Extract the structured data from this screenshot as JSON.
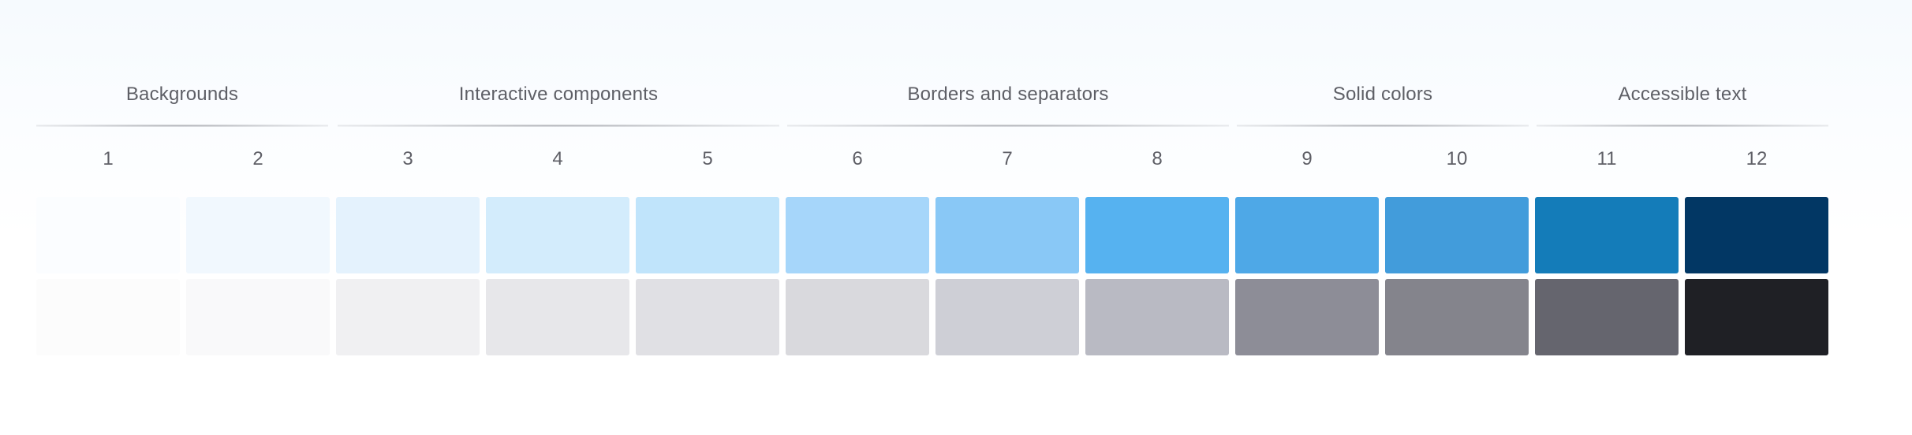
{
  "groups": [
    {
      "label": "Backgrounds"
    },
    {
      "label": "Interactive components"
    },
    {
      "label": "Borders and separators"
    },
    {
      "label": "Solid colors"
    },
    {
      "label": "Accessible text"
    }
  ],
  "steps": [
    "1",
    "2",
    "3",
    "4",
    "5",
    "6",
    "7",
    "8",
    "9",
    "10",
    "11",
    "12"
  ],
  "scales": {
    "blue": [
      "#fbfdff",
      "#f1f8fe",
      "#e4f2fd",
      "#d3ecfc",
      "#c0e4fb",
      "#a6d6fa",
      "#89c8f6",
      "#56b2f0",
      "#4ea8e7",
      "#429cdb",
      "#147cb9",
      "#023764"
    ],
    "gray": [
      "#fcfcfc",
      "#f9f9fa",
      "#f0f0f2",
      "#e7e7ea",
      "#e0e0e4",
      "#d9d9dd",
      "#cecfd6",
      "#b9bac3",
      "#8d8d97",
      "#84848c",
      "#65656e",
      "#1f2025"
    ]
  }
}
